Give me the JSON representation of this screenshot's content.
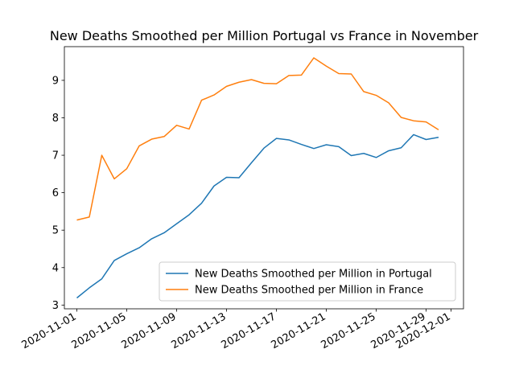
{
  "chart_data": {
    "type": "line",
    "title": "New Deaths Smoothed per Million Portugal vs France in November",
    "xlabel": "",
    "ylabel": "",
    "x": [
      "2020-11-01",
      "2020-11-02",
      "2020-11-03",
      "2020-11-04",
      "2020-11-05",
      "2020-11-06",
      "2020-11-07",
      "2020-11-08",
      "2020-11-09",
      "2020-11-10",
      "2020-11-11",
      "2020-11-12",
      "2020-11-13",
      "2020-11-14",
      "2020-11-15",
      "2020-11-16",
      "2020-11-17",
      "2020-11-18",
      "2020-11-19",
      "2020-11-20",
      "2020-11-21",
      "2020-11-22",
      "2020-11-23",
      "2020-11-24",
      "2020-11-25",
      "2020-11-26",
      "2020-11-27",
      "2020-11-28",
      "2020-11-29",
      "2020-11-30"
    ],
    "series": [
      {
        "name": "New Deaths Smoothed per Million in Portugal",
        "color": "#1f77b4",
        "values": [
          3.19,
          3.46,
          3.7,
          4.19,
          4.37,
          4.53,
          4.77,
          4.93,
          5.17,
          5.41,
          5.72,
          6.18,
          6.41,
          6.4,
          6.8,
          7.19,
          7.45,
          7.41,
          7.29,
          7.18,
          7.28,
          7.23,
          6.99,
          7.05,
          6.94,
          7.12,
          7.2,
          7.55,
          7.42,
          7.48
        ]
      },
      {
        "name": "New Deaths Smoothed per Million in France",
        "color": "#ff7f0e",
        "values": [
          5.27,
          5.35,
          7.0,
          6.37,
          6.64,
          7.25,
          7.43,
          7.5,
          7.8,
          7.7,
          8.47,
          8.61,
          8.84,
          8.95,
          9.02,
          8.92,
          8.91,
          9.13,
          9.14,
          9.6,
          9.38,
          9.18,
          9.17,
          8.7,
          8.6,
          8.4,
          8.01,
          7.92,
          7.89,
          7.68
        ]
      }
    ],
    "xticks": [
      "2020-11-01",
      "2020-11-05",
      "2020-11-09",
      "2020-11-13",
      "2020-11-17",
      "2020-11-21",
      "2020-11-25",
      "2020-11-29",
      "2020-12-01"
    ],
    "yticks": [
      3,
      4,
      5,
      6,
      7,
      8,
      9
    ],
    "xlim": [
      "2020-10-31",
      "2020-12-02"
    ],
    "ylim": [
      2.9,
      9.9
    ],
    "grid": false,
    "legend_position": "lower-right"
  }
}
